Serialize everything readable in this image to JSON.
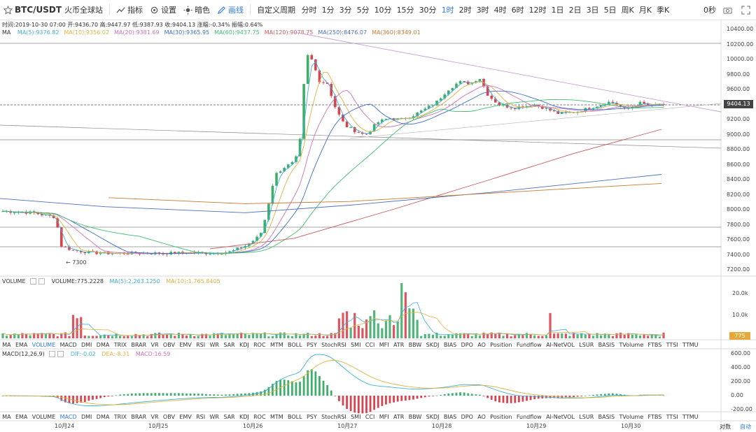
{
  "toolbar": {
    "symbol": "BTC/USDT",
    "exchange": "火币全球站",
    "indicator_btn": "指标",
    "settings_btn": "设置",
    "theme_btn": "暗色",
    "draw_btn": "画线",
    "custom_period": "自定义周期",
    "periods": [
      "分时",
      "1分",
      "3分",
      "5分",
      "10分",
      "15分",
      "30分",
      "1时",
      "2时",
      "3时",
      "4时",
      "6时",
      "12时",
      "1日",
      "2日",
      "3日",
      "5日",
      "周K",
      "月K",
      "季K"
    ],
    "active_period": "1时",
    "countdown": "0秒"
  },
  "info": "时间:2019-10-30 07:00  开:9436.70  高:9447.97  低:9387.93  收:9404.13  涨幅:-0.34%  振幅:0.64%",
  "ma_legend": {
    "title": "MA",
    "items": [
      {
        "label": "MA(5):9376.82",
        "color": "#3cb0d8"
      },
      {
        "label": "MA(10):9356.02",
        "color": "#e0b341"
      },
      {
        "label": "MA(20):9381.69",
        "color": "#d070b8"
      },
      {
        "label": "MA(30):9365.95",
        "color": "#3a6fc8"
      },
      {
        "label": "MA(60):9437.75",
        "color": "#3fbf6f"
      },
      {
        "label": "MA(120):9078.75",
        "color": "#c95a5a"
      },
      {
        "label": "MA(250):8476.07",
        "color": "#4a6fc0"
      },
      {
        "label": "MA(360):8349.01",
        "color": "#c8782e"
      }
    ]
  },
  "price_axis": [
    "10400.00",
    "10200.00",
    "10000.00",
    "9800.00",
    "9600.00",
    "9400.00",
    "9200.00",
    "9000.00",
    "8800.00",
    "8600.00",
    "8400.00",
    "8200.00",
    "8000.00",
    "7800.00",
    "7600.00",
    "7400.00",
    "7200.00"
  ],
  "current_price": "9404.13",
  "low_marker": "← 7300",
  "volume": {
    "title": "VOLUME",
    "value": "VOLUME:775.2228",
    "ma5": "MA(5):2,263.1250",
    "ma10": "MA(10):1,765.8405",
    "axis": [
      "20.0k",
      "10.0k"
    ],
    "current": "775"
  },
  "macd": {
    "title": "MACD(12,26,9)",
    "dif": "DIF:-0.02",
    "dea": "DEA:-8.31",
    "macd": "MACD:16.59",
    "axis": [
      "600.00",
      "400.00",
      "200.00",
      "0.00",
      "-200.00"
    ]
  },
  "indicators": [
    "MA",
    "EMA",
    "VOLUME",
    "MACD",
    "DMI",
    "DMA",
    "TRIX",
    "BRAR",
    "VR",
    "OBV",
    "EMV",
    "RSI",
    "WR",
    "SAR",
    "KDJ",
    "ROC",
    "MTM",
    "BOLL",
    "PSY",
    "StochRSI",
    "SMI",
    "CCI",
    "MFI",
    "ATR",
    "BBW",
    "SKDJ",
    "BIAS",
    "DPO",
    "AO",
    "Position",
    "Fundflow",
    "AI-NetVOL",
    "LSUR",
    "BASIS",
    "TVolume",
    "FTBS",
    "TTSI",
    "TTMU"
  ],
  "dates": [
    "10月24",
    "10月25",
    "10月26",
    "10月27",
    "10月28",
    "10月29",
    "10月30"
  ],
  "bottom_right": {
    "log": "对数",
    "auto": "自动"
  },
  "colors": {
    "up": "#3fae6b",
    "down": "#d9434e"
  }
}
